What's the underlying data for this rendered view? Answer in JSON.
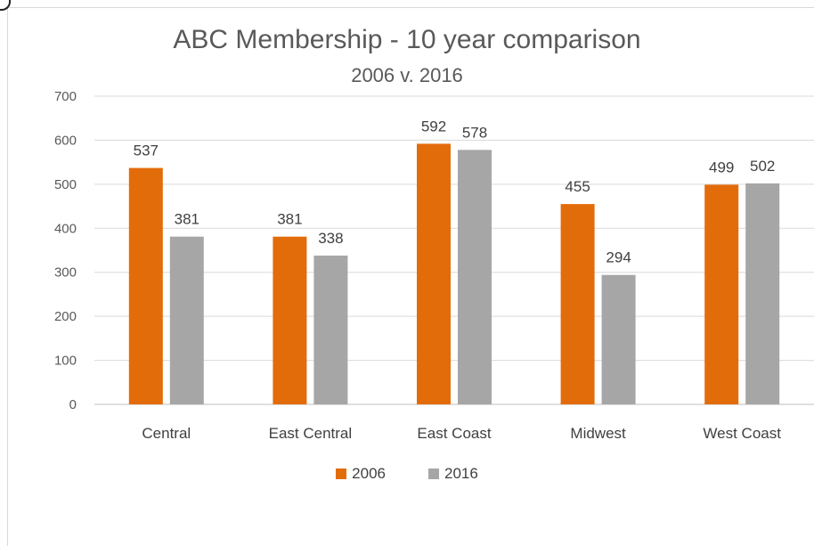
{
  "chart_data": {
    "type": "bar",
    "title": "ABC Membership - 10 year comparison",
    "subtitle": "2006 v. 2016",
    "categories": [
      "Central",
      "East Central",
      "East Coast",
      "Midwest",
      "West Coast"
    ],
    "series": [
      {
        "name": "2006",
        "color": "#e36c0a",
        "values": [
          537,
          381,
          592,
          455,
          499
        ]
      },
      {
        "name": "2016",
        "color": "#a6a6a6",
        "values": [
          381,
          338,
          578,
          294,
          502
        ]
      }
    ],
    "y_ticks": [
      "0",
      "100",
      "200",
      "300",
      "400",
      "500",
      "600",
      "700"
    ],
    "ylim": [
      0,
      700
    ],
    "grid": true,
    "legend_position": "bottom"
  }
}
